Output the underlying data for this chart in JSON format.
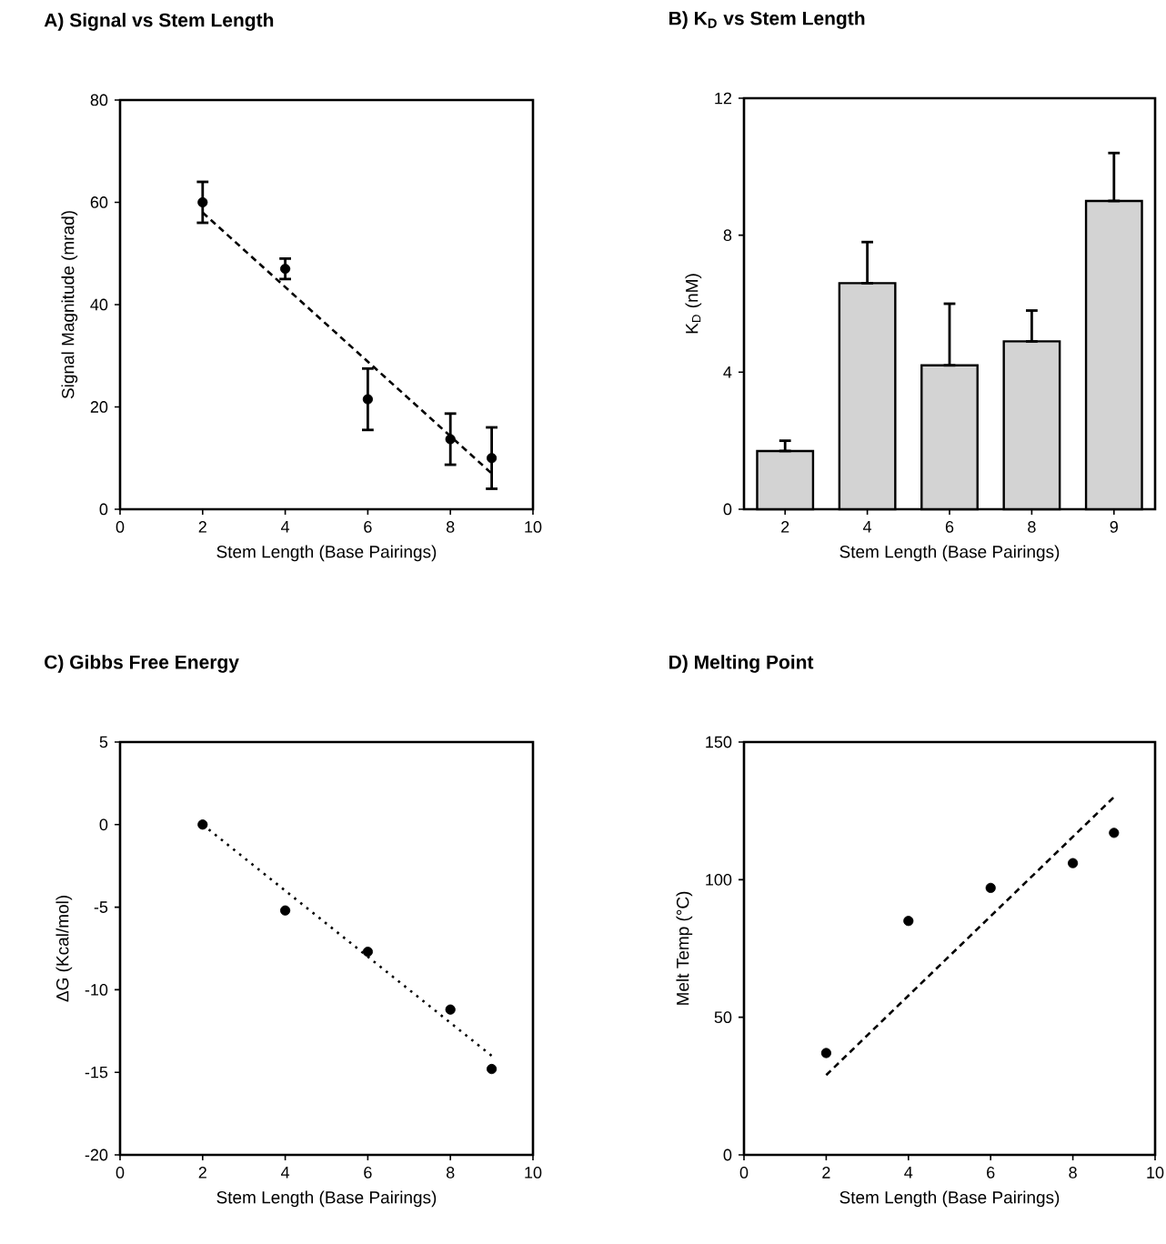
{
  "chart_data": [
    {
      "type": "scatter",
      "title": "A) Signal vs Stem Length",
      "xlabel": "Stem Length (Base Pairings)",
      "ylabel": "Signal Magnitude (mrad)",
      "xlim": [
        0,
        10
      ],
      "xticks": [
        0,
        2,
        4,
        6,
        8,
        10
      ],
      "ylim": [
        0,
        80
      ],
      "yticks": [
        0,
        20,
        40,
        60,
        80
      ],
      "series": [
        {
          "color": "#000000",
          "marker": "circle",
          "x": [
            2,
            4,
            6,
            8,
            9
          ],
          "values": [
            60,
            47,
            21.5,
            13.7,
            10
          ],
          "errors": [
            4,
            2,
            6,
            5,
            6
          ]
        },
        {
          "type": "line",
          "color": "#000000",
          "marker": "none",
          "line_style": "dashed",
          "x": [
            2,
            9
          ],
          "values": [
            58,
            7
          ]
        }
      ]
    },
    {
      "type": "bar",
      "title": "B) K$_{D}$ vs Stem Length",
      "xlabel": "Stem Length (Base Pairings)",
      "ylabel": "K$_{D}$ (nM)",
      "categories": [
        "2",
        "4",
        "6",
        "8",
        "9"
      ],
      "ylim": [
        0,
        12
      ],
      "yticks": [
        0,
        4,
        8,
        12
      ],
      "series": [
        {
          "color": "#d3d3d3",
          "values": [
            1.7,
            6.6,
            4.2,
            4.9,
            9.0
          ],
          "errors": [
            [
              1.7,
              2.0
            ],
            [
              6.6,
              7.8
            ],
            [
              4.2,
              6.0
            ],
            [
              4.9,
              5.8
            ],
            [
              9.0,
              10.4
            ]
          ]
        }
      ]
    },
    {
      "type": "scatter",
      "title": "C) Gibbs Free Energy",
      "xlabel": "Stem Length (Base Pairings)",
      "ylabel": "ΔG (Kcal/mol)",
      "xlim": [
        0,
        10
      ],
      "xticks": [
        0,
        2,
        4,
        6,
        8,
        10
      ],
      "ylim": [
        -20,
        5
      ],
      "yticks": [
        -20,
        -15,
        -10,
        -5,
        0,
        5
      ],
      "series": [
        {
          "color": "#000000",
          "marker": "circle",
          "x": [
            2,
            4,
            6,
            8,
            9
          ],
          "values": [
            0,
            -5.2,
            -7.7,
            -11.2,
            -14.8
          ]
        },
        {
          "type": "line",
          "color": "#000000",
          "marker": "none",
          "line_style": "dotted",
          "x": [
            2,
            9
          ],
          "values": [
            0,
            -14
          ]
        }
      ]
    },
    {
      "type": "scatter",
      "title": "D) Melting Point",
      "xlabel": "Stem Length (Base Pairings)",
      "ylabel": "Melt Temp (°C)",
      "xlim": [
        0,
        10
      ],
      "xticks": [
        0,
        2,
        4,
        6,
        8,
        10
      ],
      "ylim": [
        0,
        150
      ],
      "yticks": [
        0,
        50,
        100,
        150
      ],
      "series": [
        {
          "color": "#000000",
          "marker": "circle",
          "x": [
            2,
            4,
            6,
            8,
            9
          ],
          "values": [
            37,
            85,
            97,
            106,
            117
          ]
        },
        {
          "type": "line",
          "color": "#000000",
          "marker": "none",
          "line_style": "dashed",
          "x": [
            2,
            9
          ],
          "values": [
            29,
            130
          ]
        }
      ]
    }
  ]
}
